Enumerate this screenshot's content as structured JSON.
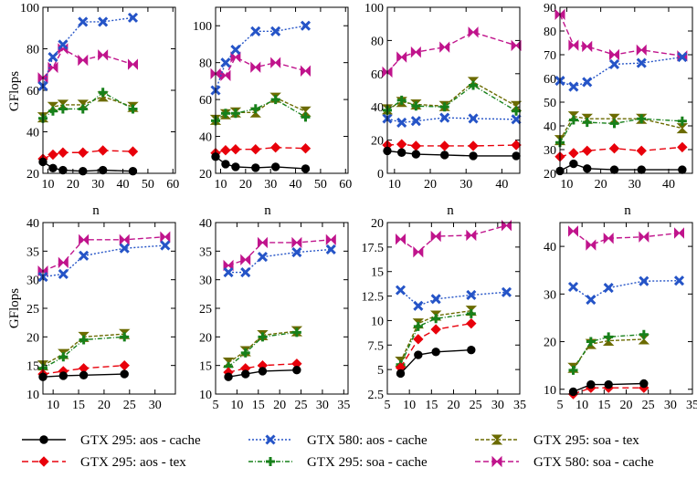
{
  "chart_data": {
    "type": "line",
    "ylabel": "GFlops",
    "xlabel": "n",
    "series_styles": [
      {
        "id": "gtx295_aos_cache",
        "label": "GTX 295: aos - cache",
        "color": "#000000",
        "marker": "circle",
        "dash": ""
      },
      {
        "id": "gtx295_aos_tex",
        "label": "GTX 295: aos - tex",
        "color": "#e8000b",
        "marker": "diamond",
        "dash": "7,4"
      },
      {
        "id": "gtx580_aos_cache",
        "label": "GTX 580: aos - cache",
        "color": "#2554c7",
        "marker": "x",
        "dash": "2,2"
      },
      {
        "id": "gtx295_soa_cache",
        "label": "GTX 295: soa - cache",
        "color": "#17801a",
        "marker": "plus",
        "dash": "5,2,1,2"
      },
      {
        "id": "gtx295_soa_tex",
        "label": "GTX 295: soa - tex",
        "color": "#6b6b00",
        "marker": "hourglass",
        "dash": "4,2"
      },
      {
        "id": "gtx580_soa_cache",
        "label": "GTX 580: soa - cache",
        "color": "#c0148c",
        "marker": "bowtie",
        "dash": "6,3"
      }
    ],
    "legend_order": [
      "gtx295_aos_cache",
      "gtx580_aos_cache",
      "gtx295_soa_tex",
      "gtx295_aos_tex",
      "gtx295_soa_cache",
      "gtx580_soa_cache"
    ],
    "panels": [
      {
        "xlim": [
          8,
          61
        ],
        "xticks": [
          10,
          20,
          30,
          40,
          50,
          60
        ],
        "ylim": [
          20,
          100
        ],
        "yticks": [
          20,
          40,
          60,
          80,
          100
        ],
        "x": [
          8,
          12,
          16,
          24,
          32,
          44
        ],
        "series": {
          "gtx295_aos_cache": [
            25.5,
            22.5,
            21.5,
            21.0,
            21.5,
            21.0
          ],
          "gtx295_aos_tex": [
            27.0,
            29.0,
            30.0,
            30.0,
            31.0,
            30.5
          ],
          "gtx580_aos_cache": [
            62.0,
            76.0,
            82.0,
            93.0,
            93.0,
            95.0
          ],
          "gtx295_soa_cache": [
            46.5,
            50.0,
            51.0,
            51.0,
            59.0,
            51.0
          ],
          "gtx295_soa_tex": [
            47.0,
            52.0,
            53.0,
            53.0,
            57.0,
            52.0
          ],
          "gtx580_soa_cache": [
            66.0,
            71.0,
            80.0,
            74.5,
            77.0,
            72.5
          ]
        }
      },
      {
        "xlim": [
          8,
          61
        ],
        "xticks": [
          10,
          20,
          30,
          40,
          50,
          60
        ],
        "ylim": [
          20,
          110
        ],
        "yticks": [
          20,
          40,
          60,
          80,
          100
        ],
        "x": [
          8,
          12,
          16,
          24,
          32,
          44
        ],
        "series": {
          "gtx295_aos_cache": [
            29.0,
            25.0,
            23.5,
            23.0,
            23.5,
            22.5
          ],
          "gtx295_aos_tex": [
            31.0,
            32.5,
            33.0,
            33.0,
            34.0,
            33.5
          ],
          "gtx580_aos_cache": [
            65.0,
            80.0,
            87.0,
            97.0,
            97.0,
            100.0
          ],
          "gtx295_soa_cache": [
            48.5,
            52.5,
            52.5,
            55.0,
            60.0,
            50.5
          ],
          "gtx295_soa_tex": [
            49.0,
            52.0,
            53.0,
            53.0,
            61.0,
            53.5
          ],
          "gtx580_soa_cache": [
            74.0,
            73.0,
            83.0,
            77.5,
            80.0,
            75.5
          ]
        }
      },
      {
        "xlim": [
          8,
          45
        ],
        "xticks": [
          10,
          20,
          30,
          40
        ],
        "ylim": [
          0,
          100
        ],
        "yticks": [
          0,
          20,
          40,
          60,
          80,
          100
        ],
        "x": [
          8,
          12,
          16,
          24,
          32,
          44
        ],
        "series": {
          "gtx295_aos_cache": [
            13.5,
            12.5,
            11.5,
            11.0,
            10.5,
            10.5
          ],
          "gtx295_aos_tex": [
            17.0,
            17.5,
            16.5,
            16.5,
            16.5,
            17.0
          ],
          "gtx580_aos_cache": [
            33.0,
            30.5,
            31.5,
            33.5,
            33.0,
            32.5
          ],
          "gtx295_soa_cache": [
            38.0,
            44.0,
            40.5,
            40.0,
            53.0,
            37.5
          ],
          "gtx295_soa_tex": [
            38.5,
            43.0,
            41.5,
            40.5,
            55.0,
            40.5
          ],
          "gtx580_soa_cache": [
            61.0,
            70.0,
            73.0,
            76.0,
            85.0,
            77.0
          ]
        }
      },
      {
        "xlim": [
          8,
          47
        ],
        "xticks": [
          10,
          20,
          30,
          40
        ],
        "ylim": [
          20,
          90
        ],
        "yticks": [
          20,
          30,
          40,
          50,
          60,
          70,
          80,
          90
        ],
        "x": [
          8,
          12,
          16,
          24,
          32,
          44
        ],
        "series": {
          "gtx295_aos_cache": [
            21.0,
            24.0,
            22.0,
            21.5,
            21.5,
            21.5
          ],
          "gtx295_aos_tex": [
            27.0,
            28.5,
            29.5,
            30.5,
            29.5,
            31.0
          ],
          "gtx580_aos_cache": [
            59.0,
            56.5,
            58.5,
            66.0,
            66.5,
            69.0
          ],
          "gtx295_soa_cache": [
            33.0,
            42.5,
            41.5,
            41.0,
            43.0,
            42.0
          ],
          "gtx295_soa_tex": [
            34.0,
            44.0,
            43.0,
            43.0,
            43.0,
            39.0
          ],
          "gtx580_soa_cache": [
            87.0,
            74.0,
            73.5,
            70.0,
            72.0,
            69.5
          ]
        }
      },
      {
        "xlim": [
          8,
          34
        ],
        "xticks": [
          10,
          15,
          20,
          25,
          30
        ],
        "ylim": [
          10,
          40
        ],
        "yticks": [
          10,
          15,
          20,
          25,
          30,
          35,
          40
        ],
        "x": [
          8,
          12,
          16,
          24,
          32
        ],
        "series": {
          "gtx295_aos_cache": [
            13.0,
            13.2,
            13.3,
            13.5,
            null
          ],
          "gtx295_aos_tex": [
            13.5,
            14.0,
            14.5,
            15.0,
            null
          ],
          "gtx580_aos_cache": [
            30.5,
            31.0,
            34.2,
            35.5,
            36.0
          ],
          "gtx295_soa_cache": [
            14.5,
            16.5,
            19.5,
            20.0,
            null
          ],
          "gtx295_soa_tex": [
            15.0,
            17.0,
            20.0,
            20.5,
            null
          ],
          "gtx580_soa_cache": [
            31.5,
            33.0,
            37.0,
            37.0,
            37.5
          ]
        }
      },
      {
        "xlim": [
          5,
          36
        ],
        "xticks": [
          5,
          10,
          15,
          20,
          25,
          30,
          35
        ],
        "ylim": [
          10,
          40
        ],
        "yticks": [
          10,
          15,
          20,
          25,
          30,
          35,
          40
        ],
        "x": [
          8,
          12,
          16,
          24,
          32
        ],
        "series": {
          "gtx295_aos_cache": [
            13.0,
            13.5,
            14.0,
            14.2,
            null
          ],
          "gtx295_aos_tex": [
            13.8,
            14.5,
            15.0,
            15.3,
            null
          ],
          "gtx580_aos_cache": [
            31.3,
            31.3,
            34.0,
            34.8,
            35.3
          ],
          "gtx295_soa_cache": [
            14.8,
            17.2,
            20.0,
            20.8,
            null
          ],
          "gtx295_soa_tex": [
            15.5,
            17.5,
            20.3,
            21.0,
            null
          ],
          "gtx580_soa_cache": [
            32.5,
            33.5,
            36.5,
            36.5,
            37.0
          ]
        }
      },
      {
        "xlim": [
          5,
          35
        ],
        "xticks": [
          5,
          10,
          15,
          20,
          25,
          30,
          35
        ],
        "ylim": [
          2.5,
          20
        ],
        "yticks": [
          2.5,
          5,
          7.5,
          10,
          12.5,
          15,
          17.5,
          20
        ],
        "x": [
          8,
          12,
          16,
          24,
          32
        ],
        "series": {
          "gtx295_aos_cache": [
            4.6,
            6.5,
            6.8,
            7.0,
            null
          ],
          "gtx295_aos_tex": [
            5.2,
            8.1,
            9.1,
            9.7,
            null
          ],
          "gtx580_aos_cache": [
            13.1,
            11.5,
            12.2,
            12.6,
            12.9
          ],
          "gtx295_soa_cache": [
            5.5,
            9.4,
            10.2,
            10.7,
            null
          ],
          "gtx295_soa_tex": [
            5.8,
            9.7,
            10.5,
            11.0,
            null
          ],
          "gtx580_soa_cache": [
            18.3,
            17.0,
            18.6,
            18.7,
            19.7
          ]
        }
      },
      {
        "xlim": [
          5,
          35
        ],
        "xticks": [
          5,
          10,
          15,
          20,
          25,
          30,
          35
        ],
        "ylim": [
          9,
          45
        ],
        "yticks": [
          10,
          20,
          30,
          40
        ],
        "x": [
          8,
          12,
          16,
          24,
          32
        ],
        "series": {
          "gtx295_aos_cache": [
            9.5,
            11.0,
            11.0,
            11.2,
            null
          ],
          "gtx295_aos_tex": [
            9.0,
            10.3,
            10.3,
            10.3,
            null
          ],
          "gtx580_aos_cache": [
            31.5,
            28.8,
            31.3,
            32.7,
            32.8
          ],
          "gtx295_soa_cache": [
            14.0,
            20.0,
            21.0,
            21.5,
            null
          ],
          "gtx295_soa_tex": [
            14.5,
            19.5,
            20.2,
            20.5,
            null
          ],
          "gtx580_soa_cache": [
            43.2,
            40.3,
            41.7,
            42.0,
            42.8
          ]
        }
      }
    ]
  }
}
